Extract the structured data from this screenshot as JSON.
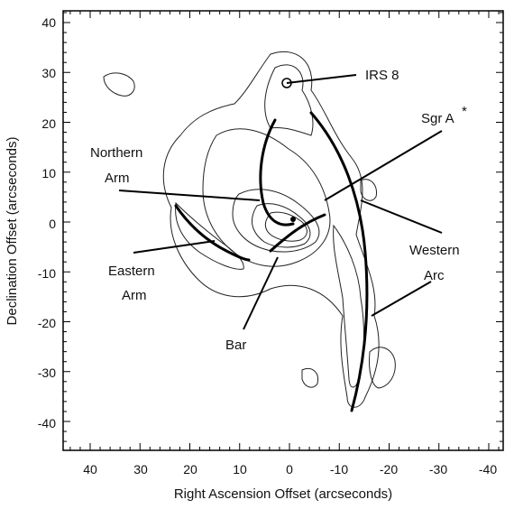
{
  "figure": {
    "x_axis_label": "Right Ascension Offset (arcseconds)",
    "y_axis_label": "Declination Offset (arcseconds)",
    "x_ticks": [
      "40",
      "30",
      "20",
      "10",
      "0",
      "-10",
      "-20",
      "-30",
      "-40"
    ],
    "y_ticks": [
      "40",
      "30",
      "20",
      "10",
      "0",
      "-10",
      "-20",
      "-30",
      "-40"
    ]
  },
  "labels": {
    "irs8": "IRS 8",
    "sgr_a": "Sgr A",
    "sgr_a_star": "*",
    "northern_1": "Northern",
    "northern_2": "Arm",
    "western_1": "Western",
    "western_2": "Arc",
    "eastern_1": "Eastern",
    "eastern_2": "Arm",
    "bar": "Bar"
  },
  "colors": {
    "ink": "#000000",
    "background": "#ffffff"
  }
}
